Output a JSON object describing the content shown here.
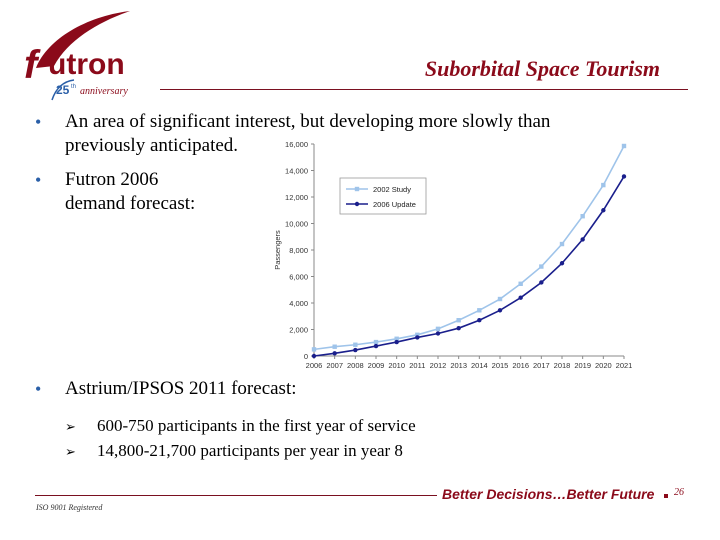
{
  "logo": {
    "brand": "utron",
    "anniversary_number": "25",
    "anniversary_suffix": "th",
    "anniversary_word": "anniversary"
  },
  "title": "Suborbital Space Tourism",
  "bullets": [
    {
      "line1": "An area of significant interest, but developing more slowly than",
      "line2": "previously anticipated."
    },
    {
      "line1": "Futron 2006",
      "line2": "demand forecast:"
    },
    {
      "line1": "Astrium/IPSOS 2011 forecast:"
    }
  ],
  "subbullets": [
    "600-750 participants in the first year of service",
    "14,800-21,700 participants per year in year 8"
  ],
  "footer": {
    "iso": "ISO 9001 Registered",
    "tagline": "Better Decisions…Better Future",
    "page": "26"
  },
  "colors": {
    "brand": "#8b0a1a",
    "series_2002": "#9fc4ea",
    "series_2006": "#1a1f8c",
    "bullet": "#2a5fa8"
  },
  "chart_data": {
    "type": "line",
    "title": "",
    "xlabel": "",
    "ylabel": "Passengers",
    "ylim": [
      0,
      16000
    ],
    "yticks": [
      "0",
      "2,000",
      "4,000",
      "6,000",
      "8,000",
      "10,000",
      "12,000",
      "14,000",
      "16,000"
    ],
    "legend_position": "top-left",
    "grid": false,
    "x": [
      "2006",
      "2007",
      "2008",
      "2009",
      "2010",
      "2011",
      "2012",
      "2013",
      "2014",
      "2015",
      "2016",
      "2017",
      "2018",
      "2019",
      "2020",
      "2021"
    ],
    "series": [
      {
        "name": "2002 Study",
        "color": "#9fc4ea",
        "marker": "square",
        "values": [
          500,
          700,
          850,
          1050,
          1300,
          1600,
          2050,
          2700,
          3450,
          4300,
          5450,
          6750,
          8450,
          10550,
          12900,
          15850
        ]
      },
      {
        "name": "2006 Update",
        "color": "#1a1f8c",
        "marker": "circle",
        "values": [
          0,
          200,
          450,
          750,
          1050,
          1400,
          1700,
          2100,
          2700,
          3450,
          4400,
          5550,
          7000,
          8800,
          11000,
          13550
        ]
      }
    ]
  }
}
